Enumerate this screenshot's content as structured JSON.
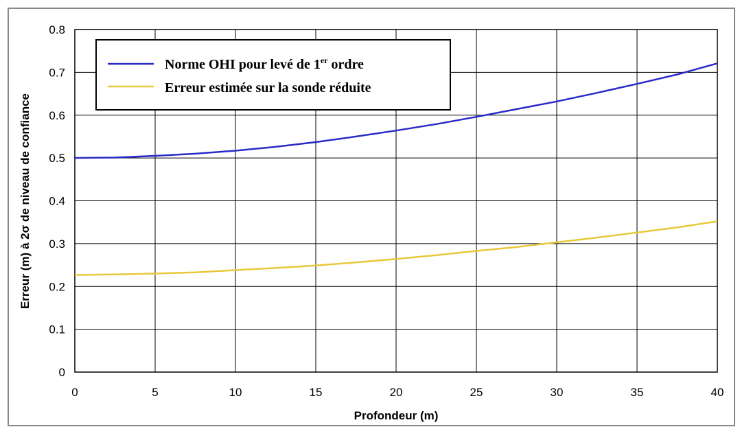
{
  "chart_data": {
    "type": "line",
    "title": "",
    "xlabel": "Profondeur (m)",
    "ylabel": "Erreur (m) à 2σ de niveau de confiance",
    "xlim": [
      0,
      40
    ],
    "ylim": [
      0,
      0.8
    ],
    "x_ticks": [
      0,
      5,
      10,
      15,
      20,
      25,
      30,
      35,
      40
    ],
    "y_ticks": [
      0,
      0.1,
      0.2,
      0.3,
      0.4,
      0.5,
      0.6,
      0.7,
      0.8
    ],
    "x_tick_labels": [
      "0",
      "5",
      "10",
      "15",
      "20",
      "25",
      "30",
      "35",
      "40"
    ],
    "y_tick_labels": [
      "0",
      "0.1",
      "0.2",
      "0.3",
      "0.4",
      "0.5",
      "0.6",
      "0.7",
      "0.8"
    ],
    "grid": true,
    "legend_position": "top-left",
    "x": [
      0,
      2.5,
      5,
      7.5,
      10,
      12.5,
      15,
      17.5,
      20,
      22.5,
      25,
      27.5,
      30,
      32.5,
      35,
      37.5,
      40
    ],
    "series": [
      {
        "name_main": "Norme OHI pour levé de 1",
        "name_sup": "er",
        "name_end": " ordre",
        "color": "#2a2ac8",
        "values": [
          0.5,
          0.501,
          0.505,
          0.51,
          0.517,
          0.526,
          0.537,
          0.55,
          0.564,
          0.579,
          0.596,
          0.614,
          0.632,
          0.652,
          0.673,
          0.695,
          0.721
        ]
      },
      {
        "name": "Erreur estimée sur la sonde réduite",
        "color": "#e8c83a",
        "values": [
          0.227,
          0.228,
          0.23,
          0.233,
          0.238,
          0.243,
          0.249,
          0.256,
          0.264,
          0.273,
          0.283,
          0.292,
          0.303,
          0.314,
          0.326,
          0.338,
          0.352
        ]
      }
    ]
  }
}
